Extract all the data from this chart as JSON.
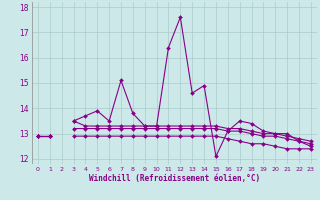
{
  "xlabel": "Windchill (Refroidissement éolien,°C)",
  "background_color": "#cce8e8",
  "grid_color": "#aacccc",
  "line_color": "#880088",
  "x_values": [
    0,
    1,
    2,
    3,
    4,
    5,
    6,
    7,
    8,
    9,
    10,
    11,
    12,
    13,
    14,
    15,
    16,
    17,
    18,
    19,
    20,
    21,
    22,
    23
  ],
  "series1": [
    12.9,
    12.9,
    null,
    13.5,
    13.7,
    13.9,
    13.5,
    15.1,
    13.8,
    13.3,
    13.3,
    16.4,
    17.6,
    14.6,
    14.9,
    12.1,
    13.1,
    13.5,
    13.4,
    13.1,
    13.0,
    13.0,
    12.7,
    12.5
  ],
  "series2": [
    12.9,
    12.9,
    null,
    13.5,
    13.3,
    13.3,
    13.3,
    13.3,
    13.3,
    13.3,
    13.3,
    13.3,
    13.3,
    13.3,
    13.3,
    13.3,
    13.2,
    13.2,
    13.1,
    13.0,
    13.0,
    12.9,
    12.8,
    12.7
  ],
  "series3": [
    12.9,
    12.9,
    null,
    13.2,
    13.2,
    13.2,
    13.2,
    13.2,
    13.2,
    13.2,
    13.2,
    13.2,
    13.2,
    13.2,
    13.2,
    13.2,
    13.1,
    13.1,
    13.0,
    12.9,
    12.9,
    12.8,
    12.7,
    12.6
  ],
  "series4": [
    12.9,
    12.9,
    null,
    12.9,
    12.9,
    12.9,
    12.9,
    12.9,
    12.9,
    12.9,
    12.9,
    12.9,
    12.9,
    12.9,
    12.9,
    12.9,
    12.8,
    12.7,
    12.6,
    12.6,
    12.5,
    12.4,
    12.4,
    12.4
  ],
  "ylim": [
    11.8,
    18.2
  ],
  "yticks": [
    12,
    13,
    14,
    15,
    16,
    17,
    18
  ],
  "xtick_labels": [
    "0",
    "1",
    "2",
    "3",
    "4",
    "5",
    "6",
    "7",
    "8",
    "9",
    "10",
    "11",
    "12",
    "13",
    "14",
    "15",
    "16",
    "17",
    "18",
    "19",
    "20",
    "21",
    "22",
    "23"
  ],
  "marker": "D",
  "markersize": 2.0,
  "linewidth": 0.8
}
